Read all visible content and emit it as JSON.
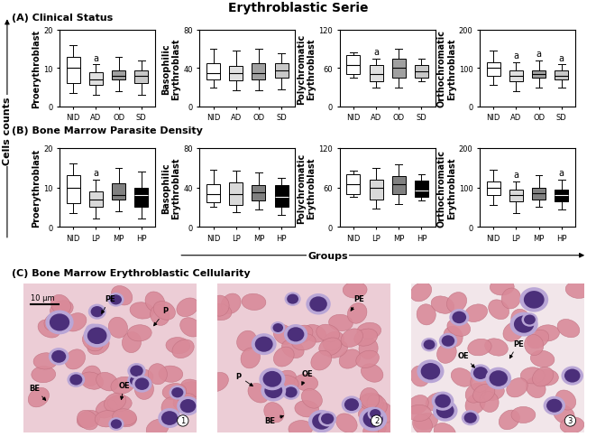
{
  "figure": {
    "title": "Erythroblastic Serie",
    "y_label": "Cells counts",
    "x_label": "Groups"
  },
  "sections": [
    "(A) Clinical Status",
    "(B) Bone Marrow Parasite Density",
    "(C) Bone Marrow Erythroblastic Cellularity"
  ],
  "chart_data": [
    {
      "type": "box",
      "ylabel": "Proerythroblast",
      "categories": [
        "NID",
        "AD",
        "OD",
        "SD"
      ],
      "min": [
        3.5,
        3,
        4,
        3
      ],
      "q1": [
        6,
        5.5,
        7,
        6
      ],
      "median": [
        10,
        7,
        8,
        8
      ],
      "q3": [
        13,
        9,
        9.5,
        9.5
      ],
      "max": [
        16,
        11,
        13,
        12
      ],
      "colors": [
        "#ffffff",
        "#e0e0e0",
        "#a0a0a0",
        "#c8c8c8"
      ],
      "annotations": [
        null,
        "a",
        null,
        null
      ],
      "ylim": [
        0,
        20
      ],
      "yticks": [
        0,
        10,
        20
      ]
    },
    {
      "type": "box",
      "ylabel": "Basophilic\nErythroblast",
      "categories": [
        "NID",
        "AD",
        "OD",
        "SD"
      ],
      "min": [
        20,
        17,
        17,
        18
      ],
      "q1": [
        28,
        27,
        28,
        30
      ],
      "median": [
        35,
        35,
        35,
        38
      ],
      "q3": [
        45,
        42,
        45,
        45
      ],
      "max": [
        60,
        58,
        60,
        55
      ],
      "colors": [
        "#ffffff",
        "#e0e0e0",
        "#a0a0a0",
        "#c8c8c8"
      ],
      "annotations": [
        null,
        null,
        null,
        null
      ],
      "ylim": [
        0,
        80
      ],
      "yticks": [
        0,
        40,
        80
      ]
    },
    {
      "type": "box",
      "ylabel": "Polychromatic\nErythroblast",
      "categories": [
        "NID",
        "AD",
        "OD",
        "SD"
      ],
      "min": [
        45,
        30,
        30,
        40
      ],
      "q1": [
        50,
        40,
        45,
        45
      ],
      "median": [
        65,
        50,
        60,
        55
      ],
      "q3": [
        80,
        65,
        75,
        65
      ],
      "max": [
        85,
        75,
        90,
        75
      ],
      "colors": [
        "#ffffff",
        "#e0e0e0",
        "#a0a0a0",
        "#c8c8c8"
      ],
      "annotations": [
        null,
        "a",
        null,
        null
      ],
      "ylim": [
        0,
        120
      ],
      "yticks": [
        0,
        60,
        120
      ]
    },
    {
      "type": "box",
      "ylabel": "Orthochromatic\nErythroblast",
      "categories": [
        "NID",
        "AD",
        "OD",
        "SD"
      ],
      "min": [
        55,
        40,
        50,
        50
      ],
      "q1": [
        80,
        65,
        75,
        70
      ],
      "median": [
        100,
        80,
        85,
        80
      ],
      "q3": [
        115,
        95,
        95,
        95
      ],
      "max": [
        145,
        115,
        120,
        110
      ],
      "colors": [
        "#ffffff",
        "#e0e0e0",
        "#a0a0a0",
        "#c8c8c8"
      ],
      "annotations": [
        null,
        "a",
        "a",
        "a"
      ],
      "ylim": [
        0,
        200
      ],
      "yticks": [
        0,
        100,
        200
      ]
    },
    {
      "type": "box",
      "ylabel": "Proerythroblast",
      "categories": [
        "NID",
        "LP",
        "MP",
        "HP"
      ],
      "min": [
        3.5,
        2,
        4,
        2
      ],
      "q1": [
        6,
        5,
        7,
        5
      ],
      "median": [
        10,
        7,
        8,
        8
      ],
      "q3": [
        13,
        9,
        11,
        10
      ],
      "max": [
        16,
        12,
        15,
        14
      ],
      "colors": [
        "#ffffff",
        "#d9d9d9",
        "#808080",
        "#000000"
      ],
      "annotations": [
        null,
        "a",
        null,
        null
      ],
      "ylim": [
        0,
        20
      ],
      "yticks": [
        0,
        10,
        20
      ]
    },
    {
      "type": "box",
      "ylabel": "Basophilic\nErythroblast",
      "categories": [
        "NID",
        "LP",
        "MP",
        "HP"
      ],
      "min": [
        20,
        15,
        18,
        12
      ],
      "q1": [
        25,
        22,
        27,
        20
      ],
      "median": [
        33,
        33,
        35,
        30
      ],
      "q3": [
        43,
        45,
        42,
        42
      ],
      "max": [
        58,
        57,
        55,
        50
      ],
      "colors": [
        "#ffffff",
        "#d9d9d9",
        "#808080",
        "#000000"
      ],
      "annotations": [
        null,
        null,
        null,
        null
      ],
      "ylim": [
        0,
        80
      ],
      "yticks": [
        0,
        40,
        80
      ]
    },
    {
      "type": "box",
      "ylabel": "Polychromatic\nErythroblast",
      "categories": [
        "NID",
        "LP",
        "MP",
        "HP"
      ],
      "min": [
        45,
        28,
        35,
        40
      ],
      "q1": [
        50,
        42,
        50,
        45
      ],
      "median": [
        65,
        60,
        65,
        55
      ],
      "q3": [
        80,
        72,
        77,
        70
      ],
      "max": [
        85,
        90,
        95,
        80
      ],
      "colors": [
        "#ffffff",
        "#d9d9d9",
        "#808080",
        "#000000"
      ],
      "annotations": [
        null,
        null,
        null,
        null
      ],
      "ylim": [
        0,
        120
      ],
      "yticks": [
        0,
        60,
        120
      ]
    },
    {
      "type": "box",
      "ylabel": "Orthochromatic\nErythroblast",
      "categories": [
        "NID",
        "LP",
        "MP",
        "HP"
      ],
      "min": [
        55,
        35,
        50,
        45
      ],
      "q1": [
        80,
        65,
        70,
        65
      ],
      "median": [
        100,
        80,
        85,
        80
      ],
      "q3": [
        115,
        95,
        100,
        95
      ],
      "max": [
        145,
        115,
        130,
        120
      ],
      "colors": [
        "#ffffff",
        "#d9d9d9",
        "#808080",
        "#000000"
      ],
      "annotations": [
        null,
        "a",
        null,
        "a"
      ],
      "ylim": [
        0,
        200
      ],
      "yticks": [
        0,
        100,
        200
      ]
    }
  ],
  "images": [
    {
      "number": "1",
      "scale_bar": "10 µm",
      "labels": [
        "PE",
        "P",
        "BE",
        "OE"
      ]
    },
    {
      "number": "2",
      "labels": [
        "PE",
        "P",
        "BE",
        "OE"
      ]
    },
    {
      "number": "3",
      "labels": [
        "OE",
        "PE"
      ]
    }
  ]
}
